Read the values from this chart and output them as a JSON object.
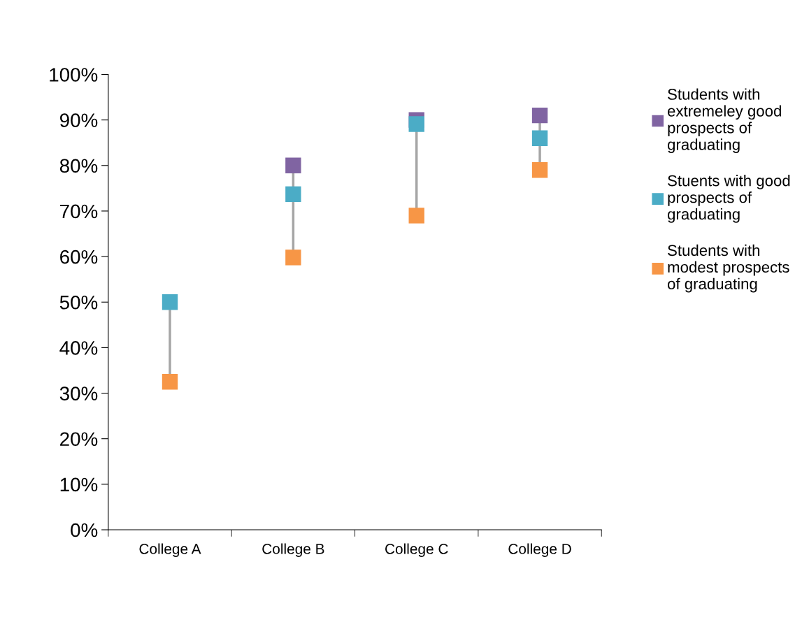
{
  "chart_data": {
    "type": "scatter",
    "marker": "square",
    "legend": "right",
    "grid": false,
    "categories": [
      "College A",
      "College B",
      "College C",
      "College D"
    ],
    "ylim": [
      0,
      1
    ],
    "yticks": [
      {
        "value": 0,
        "label": "0%"
      },
      {
        "value": 0.1,
        "label": "10%"
      },
      {
        "value": 0.2,
        "label": "20%"
      },
      {
        "value": 0.3,
        "label": "30%"
      },
      {
        "value": 0.4,
        "label": "40%"
      },
      {
        "value": 0.5,
        "label": "50%"
      },
      {
        "value": 0.6,
        "label": "60%"
      },
      {
        "value": 0.7,
        "label": "70%"
      },
      {
        "value": 0.8,
        "label": "80%"
      },
      {
        "value": 0.9,
        "label": "90%"
      },
      {
        "value": 1,
        "label": "100%"
      }
    ],
    "series": [
      {
        "name": "Students with extremeley good prospects of graduating",
        "color": "#8064a2",
        "values": [
          null,
          0.8,
          0.9,
          0.91
        ]
      },
      {
        "name": "Stuents with good prospects of graduating",
        "color": "#4bacc6",
        "values": [
          0.5,
          0.737,
          0.891,
          0.86
        ]
      },
      {
        "name": "Students with modest prospects of graduating",
        "color": "#f79646",
        "values": [
          0.325,
          0.598,
          0.69,
          0.79
        ]
      }
    ]
  }
}
